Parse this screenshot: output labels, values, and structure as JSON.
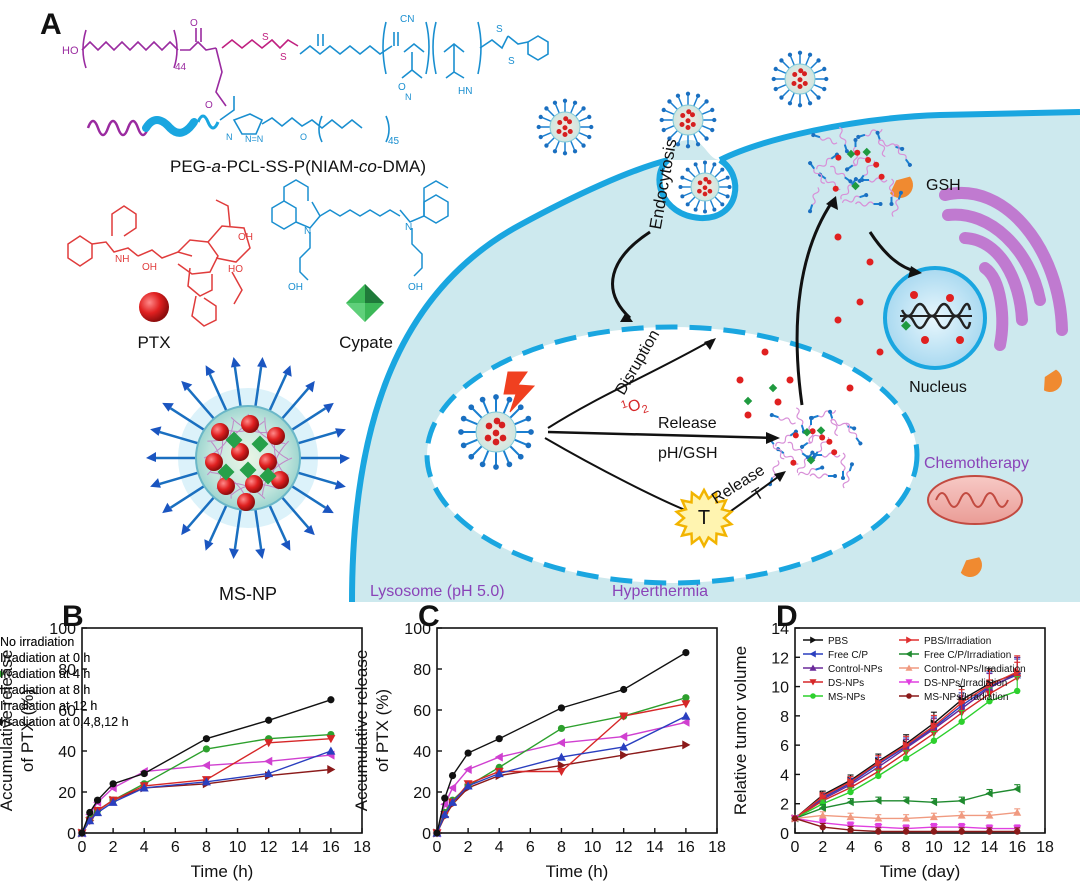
{
  "panel_labels": {
    "a": "A",
    "b": "B",
    "c": "C",
    "d": "D"
  },
  "schematic": {
    "polymer_label_parts": [
      "PEG-",
      "a",
      "-PCL-SS-P(NIAM-",
      "co",
      "-DMA)"
    ],
    "polymer_subscripts": {
      "pcl": "44",
      "peg": "45"
    },
    "drug_label": "PTX",
    "dye_label": "Cypate",
    "nanoparticle_label": "MS-NP",
    "endocytosis_label": "Endocytosis",
    "disruption_label": "Disruption",
    "singlet_oxygen_sup": "1",
    "singlet_oxygen_base": "O",
    "singlet_oxygen_sub": "2",
    "release_label": "Release",
    "ph_gsh_label": "pH/GSH",
    "release_t_label": "Release",
    "t_label": "T",
    "hyperthermia_label": "Hyperthermia",
    "lysosome_label": "Lysosome (pH 5.0)",
    "nucleus_label": "Nucleus",
    "gsh_label": "GSH",
    "chemotherapy_label": "Chemotherapy",
    "colors": {
      "membrane": "#1aa6e0",
      "cytoplasm": "#cde9ee",
      "ptx_red": "#e02020",
      "cypate_green": "#1f9a3f",
      "purple_text": "#8a44b8",
      "golgi": "#c07ad0",
      "gsh_orange": "#f08a30"
    }
  },
  "chart_data": [
    {
      "panel": "B",
      "type": "line",
      "xlabel": "Time (h)",
      "ylabel": "Accumulative release of PTX (%)",
      "ylabel_lines": [
        "Accumulative release",
        "of PTX (%)"
      ],
      "xlim": [
        0,
        18
      ],
      "ylim": [
        0,
        100
      ],
      "xticks": [
        0,
        2,
        4,
        6,
        8,
        10,
        12,
        14,
        16,
        18
      ],
      "yticks": [
        0,
        20,
        40,
        60,
        80,
        100
      ],
      "legend_position": "top-left",
      "x": [
        0,
        0.5,
        1,
        2,
        4,
        8,
        12,
        16
      ],
      "series": [
        {
          "name": "No irradiation",
          "color": "#8b1a1a",
          "marker": "tri-right",
          "values": [
            0,
            6,
            11,
            16,
            22,
            24,
            28,
            31
          ]
        },
        {
          "name": "Irradiation at 0 h",
          "color": "#d040d0",
          "marker": "tri-left",
          "values": [
            0,
            9,
            15,
            22,
            30,
            33,
            35,
            38
          ]
        },
        {
          "name": "Irradiation at 4 h",
          "color": "#2da02d",
          "marker": "circle",
          "values": [
            0,
            7,
            11,
            16,
            24,
            41,
            46,
            48
          ]
        },
        {
          "name": "Irradiation at 8 h",
          "color": "#d62728",
          "marker": "tri-down",
          "values": [
            0,
            6,
            11,
            16,
            23,
            26,
            44,
            46
          ]
        },
        {
          "name": "Irradiation at 12 h",
          "color": "#2a3fbf",
          "marker": "tri-up",
          "values": [
            0,
            6,
            10,
            15,
            22,
            25,
            29,
            40
          ]
        },
        {
          "name": "Irradiation at 0,4,8,12 h",
          "color": "#111111",
          "marker": "circle",
          "values": [
            0,
            10,
            16,
            24,
            29,
            46,
            55,
            65
          ]
        }
      ]
    },
    {
      "panel": "C",
      "type": "line",
      "xlabel": "Time (h)",
      "ylabel": "Accumulative release of PTX (%)",
      "ylabel_lines": [
        "Accumulative release",
        "of PTX (%)"
      ],
      "xlim": [
        0,
        18
      ],
      "ylim": [
        0,
        100
      ],
      "xticks": [
        0,
        2,
        4,
        6,
        8,
        10,
        12,
        14,
        16,
        18
      ],
      "yticks": [
        0,
        20,
        40,
        60,
        80,
        100
      ],
      "legend_position": "top-left",
      "x": [
        0,
        0.5,
        1,
        2,
        4,
        8,
        12,
        16
      ],
      "series": [
        {
          "name": "No irradiation",
          "color": "#8b1a1a",
          "marker": "tri-right",
          "values": [
            0,
            8,
            14,
            22,
            28,
            33,
            38,
            43
          ]
        },
        {
          "name": "Irradiation at 0 h",
          "color": "#d040d0",
          "marker": "tri-left",
          "values": [
            0,
            14,
            22,
            31,
            37,
            44,
            47,
            54
          ]
        },
        {
          "name": "Irradiation at 4 h",
          "color": "#2da02d",
          "marker": "circle",
          "values": [
            0,
            10,
            16,
            23,
            32,
            51,
            57,
            66
          ]
        },
        {
          "name": "Irradiation at 8 h",
          "color": "#d62728",
          "marker": "tri-down",
          "values": [
            0,
            9,
            15,
            24,
            30,
            30,
            57,
            63
          ]
        },
        {
          "name": "Irradiation at 12 h",
          "color": "#2a3fbf",
          "marker": "tri-up",
          "values": [
            0,
            9,
            15,
            23,
            29,
            37,
            42,
            57
          ]
        },
        {
          "name": "Irradiation at 0,4,8,12 h",
          "color": "#111111",
          "marker": "circle",
          "values": [
            0,
            17,
            28,
            39,
            46,
            61,
            70,
            88
          ]
        }
      ]
    },
    {
      "panel": "D",
      "type": "line",
      "xlabel": "Time (day)",
      "ylabel": "Relative tumor volume",
      "xlim": [
        0,
        18
      ],
      "ylim": [
        0,
        14
      ],
      "xticks": [
        0,
        2,
        4,
        6,
        8,
        10,
        12,
        14,
        16,
        18
      ],
      "yticks": [
        0,
        2,
        4,
        6,
        8,
        10,
        12,
        14
      ],
      "legend_position": "top-left",
      "x": [
        0,
        2,
        4,
        6,
        8,
        10,
        12,
        14,
        16
      ],
      "series": [
        {
          "name": "PBS",
          "color": "#111111",
          "marker": "tri-right",
          "values": [
            1,
            2.6,
            3.6,
            4.9,
            6.1,
            7.5,
            9.1,
            10.2,
            10.9
          ]
        },
        {
          "name": "Free C/P",
          "color": "#2a3fbf",
          "marker": "tri-left",
          "values": [
            1,
            2.4,
            3.4,
            4.7,
            5.9,
            7.2,
            8.7,
            10.0,
            10.8
          ]
        },
        {
          "name": "Control-NPs",
          "color": "#6a2a9a",
          "marker": "tri-up",
          "values": [
            1,
            2.3,
            3.3,
            4.5,
            5.8,
            7.1,
            8.5,
            9.9,
            10.9
          ]
        },
        {
          "name": "DS-NPs",
          "color": "#d62728",
          "marker": "tri-down",
          "values": [
            1,
            2.2,
            3.1,
            4.2,
            5.5,
            6.8,
            8.2,
            9.5,
            10.6
          ]
        },
        {
          "name": "MS-NPs",
          "color": "#2dd02d",
          "marker": "circle",
          "values": [
            1,
            2.0,
            2.8,
            3.9,
            5.1,
            6.3,
            7.6,
            9.0,
            9.7
          ]
        },
        {
          "name": "PBS/Irradiation",
          "color": "#e03030",
          "marker": "tri-right",
          "values": [
            1,
            2.5,
            3.5,
            4.8,
            6.0,
            7.3,
            8.9,
            10.1,
            11.0
          ]
        },
        {
          "name": "Free C/P/Irradiation",
          "color": "#1f8a2f",
          "marker": "tri-left",
          "values": [
            1,
            1.7,
            2.1,
            2.2,
            2.2,
            2.1,
            2.2,
            2.7,
            3.0
          ]
        },
        {
          "name": "Control-NPs/Irradiation",
          "color": "#f09a80",
          "marker": "tri-up",
          "values": [
            1,
            1.2,
            1.1,
            1.0,
            1.0,
            1.1,
            1.2,
            1.2,
            1.4
          ]
        },
        {
          "name": "DS-NPs/Irradiation",
          "color": "#e040e0",
          "marker": "tri-down",
          "values": [
            1,
            0.7,
            0.5,
            0.4,
            0.3,
            0.4,
            0.4,
            0.3,
            0.3
          ]
        },
        {
          "name": "MS-NPs/Irradiation",
          "color": "#8b1a1a",
          "marker": "circle",
          "values": [
            1,
            0.4,
            0.2,
            0.1,
            0.1,
            0.1,
            0.1,
            0.1,
            0.1
          ]
        }
      ]
    }
  ]
}
